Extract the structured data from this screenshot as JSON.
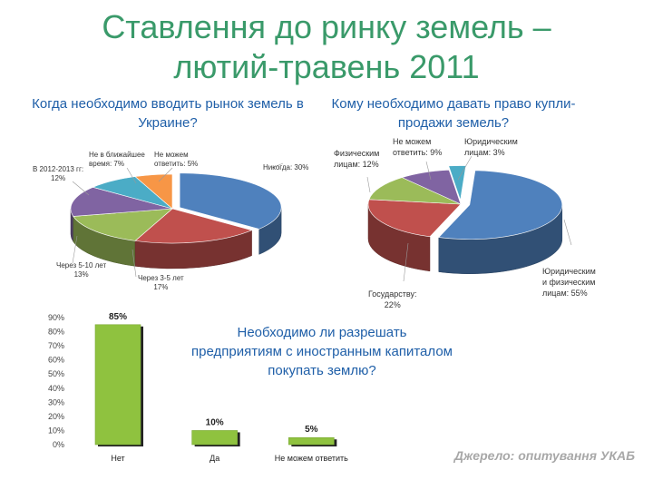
{
  "title": {
    "line1": "Ставлення до ринку земель –",
    "line2": "лютий-травень 2011"
  },
  "source": "Джерело: опитування УКАБ",
  "colors": {
    "title": "#3a9a6a",
    "question": "#1f5fa8",
    "source": "#a8a8a8",
    "bar": "#8fc23f"
  },
  "chart_data": [
    {
      "type": "pie",
      "title": "Когда необходимо вводить рынок земель в Украине?",
      "slices": [
        {
          "label": "Никогда",
          "value": 30,
          "label_text": "Никогда: 30%",
          "color": "#4f81bd"
        },
        {
          "label": "Через 3-5 лет",
          "value": 17,
          "label_text": "Через 3-5 лет\n17%",
          "color": "#c0504d"
        },
        {
          "label": "Через 5-10 лет",
          "value": 13,
          "label_text": "Через 5-10 лет\n13%",
          "color": "#9bbb59"
        },
        {
          "label": "В 2012-2013 гг",
          "value": 12,
          "label_text": "В 2012-2013 гг:\n12%",
          "color": "#8064a2"
        },
        {
          "label": "Не в ближайшее время",
          "value": 7,
          "label_text": "Не в ближайшее\nвремя: 7%",
          "color": "#4bacc6"
        },
        {
          "label": "Не можем ответить",
          "value": 5,
          "label_text": "Не можем\nответить: 5%",
          "color": "#f79646"
        }
      ]
    },
    {
      "type": "pie",
      "title": "Кому необходимо давать право купли-продажи земель?",
      "slices": [
        {
          "label": "Юридическим и физическим лицам",
          "value": 55,
          "label_text": "Юридическим\nи физическим\nлицам: 55%",
          "color": "#4f81bd"
        },
        {
          "label": "Государству",
          "value": 22,
          "label_text": "Государству:\n22%",
          "color": "#c0504d"
        },
        {
          "label": "Физическим лицам",
          "value": 12,
          "label_text": "Физическим\nлицам: 12%",
          "color": "#9bbb59"
        },
        {
          "label": "Не можем ответить",
          "value": 9,
          "label_text": "Не можем\nответить: 9%",
          "color": "#8064a2"
        },
        {
          "label": "Юридическим лицам",
          "value": 3,
          "label_text": "Юридическим\nлицам: 3%",
          "color": "#4bacc6"
        }
      ]
    },
    {
      "type": "bar",
      "title": "Необходимо ли разрешать предприятиям с иностранным капиталом покупать землю?",
      "categories": [
        "Нет",
        "Да",
        "Не можем ответить"
      ],
      "values": [
        85,
        10,
        5
      ],
      "value_labels": [
        "85%",
        "10%",
        "5%"
      ],
      "ylim": [
        0,
        90
      ],
      "yticks": [
        "0%",
        "10%",
        "20%",
        "30%",
        "40%",
        "50%",
        "60%",
        "70%",
        "80%",
        "90%"
      ],
      "grid": false
    }
  ]
}
